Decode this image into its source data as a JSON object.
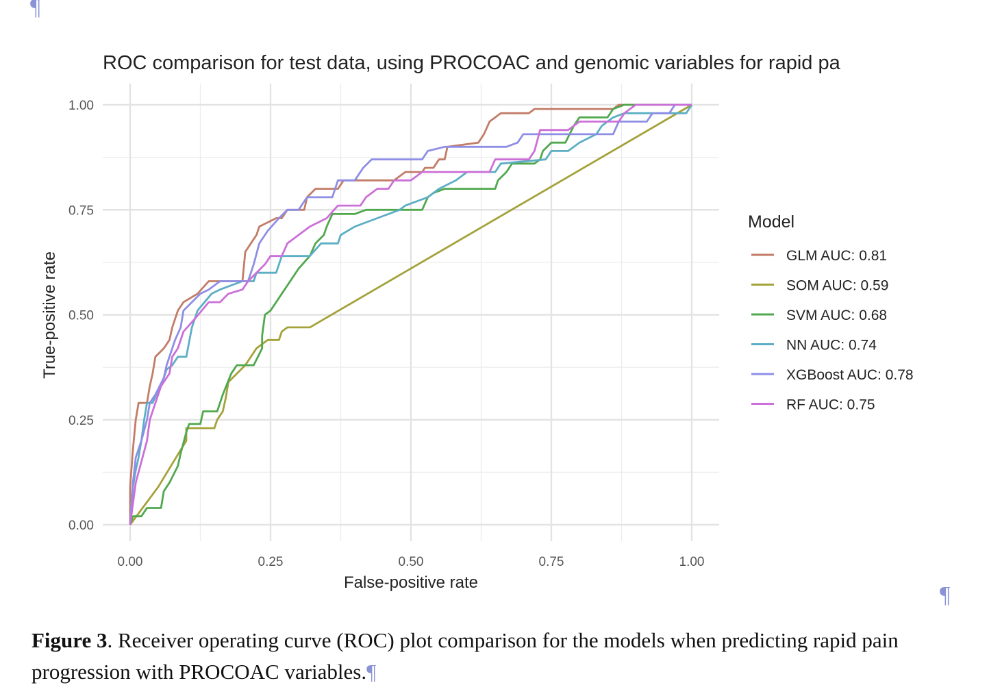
{
  "document": {
    "pilcrow": "¶",
    "caption": {
      "label": "Figure 3",
      "text": ". Receiver operating curve (ROC) plot comparison for the models when predicting rapid pain progression with PROCOAC variables."
    }
  },
  "chart_data": {
    "type": "line",
    "title": "ROC comparison for test data, using PROCOAC and genomic variables for rapid pa",
    "xlabel": "False-positive rate",
    "ylabel": "True-positive rate",
    "xlim": [
      0,
      1
    ],
    "ylim": [
      0,
      1
    ],
    "grid": true,
    "xticks": [
      "0.00",
      "0.25",
      "0.50",
      "0.75",
      "1.00"
    ],
    "yticks": [
      "0.00",
      "0.25",
      "0.50",
      "0.75",
      "1.00"
    ],
    "legend_title": "Model",
    "legend_position": "right",
    "series": [
      {
        "name": "GLM AUC: 0.81",
        "color": "#c27c67",
        "points": [
          [
            0,
            0
          ],
          [
            0,
            0.09
          ],
          [
            0.005,
            0.18
          ],
          [
            0.01,
            0.25
          ],
          [
            0.015,
            0.29
          ],
          [
            0.03,
            0.29
          ],
          [
            0.035,
            0.33
          ],
          [
            0.04,
            0.36
          ],
          [
            0.045,
            0.4
          ],
          [
            0.06,
            0.42
          ],
          [
            0.07,
            0.44
          ],
          [
            0.075,
            0.47
          ],
          [
            0.085,
            0.51
          ],
          [
            0.095,
            0.53
          ],
          [
            0.12,
            0.55
          ],
          [
            0.14,
            0.58
          ],
          [
            0.2,
            0.58
          ],
          [
            0.205,
            0.65
          ],
          [
            0.215,
            0.67
          ],
          [
            0.225,
            0.69
          ],
          [
            0.23,
            0.71
          ],
          [
            0.26,
            0.73
          ],
          [
            0.27,
            0.73
          ],
          [
            0.28,
            0.75
          ],
          [
            0.31,
            0.75
          ],
          [
            0.315,
            0.78
          ],
          [
            0.33,
            0.8
          ],
          [
            0.37,
            0.8
          ],
          [
            0.38,
            0.82
          ],
          [
            0.47,
            0.82
          ],
          [
            0.49,
            0.84
          ],
          [
            0.52,
            0.84
          ],
          [
            0.525,
            0.85
          ],
          [
            0.54,
            0.85
          ],
          [
            0.55,
            0.87
          ],
          [
            0.56,
            0.87
          ],
          [
            0.565,
            0.9
          ],
          [
            0.62,
            0.91
          ],
          [
            0.63,
            0.93
          ],
          [
            0.64,
            0.96
          ],
          [
            0.66,
            0.98
          ],
          [
            0.71,
            0.98
          ],
          [
            0.72,
            0.99
          ],
          [
            0.86,
            0.99
          ],
          [
            0.87,
            1.0
          ],
          [
            1.0,
            1.0
          ]
        ]
      },
      {
        "name": "SOM AUC: 0.59",
        "color": "#a4a23a",
        "points": [
          [
            0,
            0
          ],
          [
            0.05,
            0.09
          ],
          [
            0.1,
            0.2
          ],
          [
            0.1,
            0.23
          ],
          [
            0.15,
            0.23
          ],
          [
            0.155,
            0.25
          ],
          [
            0.165,
            0.27
          ],
          [
            0.17,
            0.3
          ],
          [
            0.175,
            0.34
          ],
          [
            0.205,
            0.38
          ],
          [
            0.225,
            0.42
          ],
          [
            0.245,
            0.44
          ],
          [
            0.265,
            0.44
          ],
          [
            0.27,
            0.46
          ],
          [
            0.28,
            0.47
          ],
          [
            0.32,
            0.47
          ],
          [
            1.0,
            1.0
          ]
        ]
      },
      {
        "name": "SVM AUC: 0.68",
        "color": "#50a84e",
        "points": [
          [
            0,
            0
          ],
          [
            0.005,
            0.02
          ],
          [
            0.02,
            0.02
          ],
          [
            0.03,
            0.04
          ],
          [
            0.055,
            0.04
          ],
          [
            0.06,
            0.08
          ],
          [
            0.07,
            0.1
          ],
          [
            0.085,
            0.14
          ],
          [
            0.09,
            0.17
          ],
          [
            0.1,
            0.22
          ],
          [
            0.105,
            0.24
          ],
          [
            0.125,
            0.24
          ],
          [
            0.13,
            0.27
          ],
          [
            0.155,
            0.27
          ],
          [
            0.16,
            0.29
          ],
          [
            0.165,
            0.31
          ],
          [
            0.18,
            0.36
          ],
          [
            0.19,
            0.38
          ],
          [
            0.22,
            0.38
          ],
          [
            0.235,
            0.42
          ],
          [
            0.235,
            0.45
          ],
          [
            0.24,
            0.5
          ],
          [
            0.25,
            0.51
          ],
          [
            0.26,
            0.53
          ],
          [
            0.275,
            0.56
          ],
          [
            0.28,
            0.57
          ],
          [
            0.3,
            0.61
          ],
          [
            0.32,
            0.64
          ],
          [
            0.33,
            0.67
          ],
          [
            0.345,
            0.69
          ],
          [
            0.35,
            0.71
          ],
          [
            0.36,
            0.74
          ],
          [
            0.4,
            0.74
          ],
          [
            0.42,
            0.75
          ],
          [
            0.52,
            0.75
          ],
          [
            0.53,
            0.78
          ],
          [
            0.54,
            0.79
          ],
          [
            0.56,
            0.8
          ],
          [
            0.65,
            0.8
          ],
          [
            0.655,
            0.82
          ],
          [
            0.67,
            0.84
          ],
          [
            0.68,
            0.86
          ],
          [
            0.72,
            0.86
          ],
          [
            0.73,
            0.87
          ],
          [
            0.735,
            0.89
          ],
          [
            0.75,
            0.91
          ],
          [
            0.775,
            0.91
          ],
          [
            0.79,
            0.95
          ],
          [
            0.8,
            0.97
          ],
          [
            0.85,
            0.97
          ],
          [
            0.86,
            0.99
          ],
          [
            0.88,
            1.0
          ],
          [
            1.0,
            1.0
          ]
        ]
      },
      {
        "name": "NN AUC: 0.74",
        "color": "#5caec4",
        "points": [
          [
            0,
            0
          ],
          [
            0.005,
            0.09
          ],
          [
            0.01,
            0.13
          ],
          [
            0.015,
            0.16
          ],
          [
            0.02,
            0.2
          ],
          [
            0.025,
            0.25
          ],
          [
            0.03,
            0.29
          ],
          [
            0.04,
            0.29
          ],
          [
            0.06,
            0.35
          ],
          [
            0.065,
            0.37
          ],
          [
            0.075,
            0.38
          ],
          [
            0.085,
            0.4
          ],
          [
            0.1,
            0.4
          ],
          [
            0.11,
            0.47
          ],
          [
            0.12,
            0.51
          ],
          [
            0.145,
            0.55
          ],
          [
            0.16,
            0.56
          ],
          [
            0.2,
            0.58
          ],
          [
            0.22,
            0.58
          ],
          [
            0.225,
            0.6
          ],
          [
            0.26,
            0.6
          ],
          [
            0.27,
            0.64
          ],
          [
            0.32,
            0.64
          ],
          [
            0.34,
            0.67
          ],
          [
            0.37,
            0.67
          ],
          [
            0.375,
            0.69
          ],
          [
            0.4,
            0.71
          ],
          [
            0.44,
            0.73
          ],
          [
            0.46,
            0.74
          ],
          [
            0.48,
            0.75
          ],
          [
            0.49,
            0.76
          ],
          [
            0.53,
            0.78
          ],
          [
            0.55,
            0.8
          ],
          [
            0.58,
            0.82
          ],
          [
            0.6,
            0.84
          ],
          [
            0.65,
            0.84
          ],
          [
            0.66,
            0.86
          ],
          [
            0.74,
            0.87
          ],
          [
            0.75,
            0.89
          ],
          [
            0.78,
            0.89
          ],
          [
            0.8,
            0.91
          ],
          [
            0.83,
            0.93
          ],
          [
            0.84,
            0.95
          ],
          [
            0.86,
            0.97
          ],
          [
            0.88,
            0.98
          ],
          [
            0.99,
            0.98
          ],
          [
            1.0,
            1.0
          ]
        ]
      },
      {
        "name": "XGBoost AUC: 0.78",
        "color": "#8e8ee6",
        "points": [
          [
            0,
            0
          ],
          [
            0.005,
            0.1
          ],
          [
            0.01,
            0.16
          ],
          [
            0.02,
            0.2
          ],
          [
            0.03,
            0.25
          ],
          [
            0.035,
            0.29
          ],
          [
            0.045,
            0.31
          ],
          [
            0.06,
            0.35
          ],
          [
            0.065,
            0.38
          ],
          [
            0.08,
            0.44
          ],
          [
            0.09,
            0.47
          ],
          [
            0.095,
            0.51
          ],
          [
            0.11,
            0.53
          ],
          [
            0.125,
            0.55
          ],
          [
            0.14,
            0.56
          ],
          [
            0.16,
            0.58
          ],
          [
            0.21,
            0.58
          ],
          [
            0.22,
            0.62
          ],
          [
            0.23,
            0.67
          ],
          [
            0.245,
            0.7
          ],
          [
            0.265,
            0.73
          ],
          [
            0.28,
            0.75
          ],
          [
            0.3,
            0.75
          ],
          [
            0.315,
            0.78
          ],
          [
            0.36,
            0.78
          ],
          [
            0.37,
            0.82
          ],
          [
            0.4,
            0.82
          ],
          [
            0.415,
            0.85
          ],
          [
            0.43,
            0.87
          ],
          [
            0.52,
            0.87
          ],
          [
            0.53,
            0.89
          ],
          [
            0.56,
            0.9
          ],
          [
            0.67,
            0.9
          ],
          [
            0.69,
            0.91
          ],
          [
            0.7,
            0.93
          ],
          [
            0.86,
            0.93
          ],
          [
            0.87,
            0.96
          ],
          [
            0.92,
            0.96
          ],
          [
            0.93,
            0.98
          ],
          [
            0.96,
            0.98
          ],
          [
            0.97,
            1.0
          ],
          [
            1.0,
            1.0
          ]
        ]
      },
      {
        "name": "RF AUC: 0.75",
        "color": "#cc6fd8",
        "points": [
          [
            0,
            0
          ],
          [
            0.01,
            0.1
          ],
          [
            0.02,
            0.15
          ],
          [
            0.03,
            0.2
          ],
          [
            0.035,
            0.25
          ],
          [
            0.045,
            0.29
          ],
          [
            0.055,
            0.33
          ],
          [
            0.07,
            0.36
          ],
          [
            0.075,
            0.4
          ],
          [
            0.085,
            0.42
          ],
          [
            0.095,
            0.46
          ],
          [
            0.115,
            0.49
          ],
          [
            0.14,
            0.53
          ],
          [
            0.16,
            0.53
          ],
          [
            0.175,
            0.55
          ],
          [
            0.2,
            0.56
          ],
          [
            0.21,
            0.58
          ],
          [
            0.225,
            0.6
          ],
          [
            0.24,
            0.62
          ],
          [
            0.25,
            0.64
          ],
          [
            0.27,
            0.64
          ],
          [
            0.28,
            0.67
          ],
          [
            0.3,
            0.69
          ],
          [
            0.32,
            0.71
          ],
          [
            0.35,
            0.73
          ],
          [
            0.37,
            0.76
          ],
          [
            0.41,
            0.76
          ],
          [
            0.42,
            0.78
          ],
          [
            0.44,
            0.8
          ],
          [
            0.46,
            0.8
          ],
          [
            0.47,
            0.82
          ],
          [
            0.5,
            0.82
          ],
          [
            0.52,
            0.84
          ],
          [
            0.64,
            0.84
          ],
          [
            0.65,
            0.87
          ],
          [
            0.71,
            0.87
          ],
          [
            0.72,
            0.89
          ],
          [
            0.73,
            0.94
          ],
          [
            0.78,
            0.94
          ],
          [
            0.8,
            0.96
          ],
          [
            0.87,
            0.96
          ],
          [
            0.88,
            0.98
          ],
          [
            0.9,
            1.0
          ],
          [
            1.0,
            1.0
          ]
        ]
      }
    ]
  }
}
